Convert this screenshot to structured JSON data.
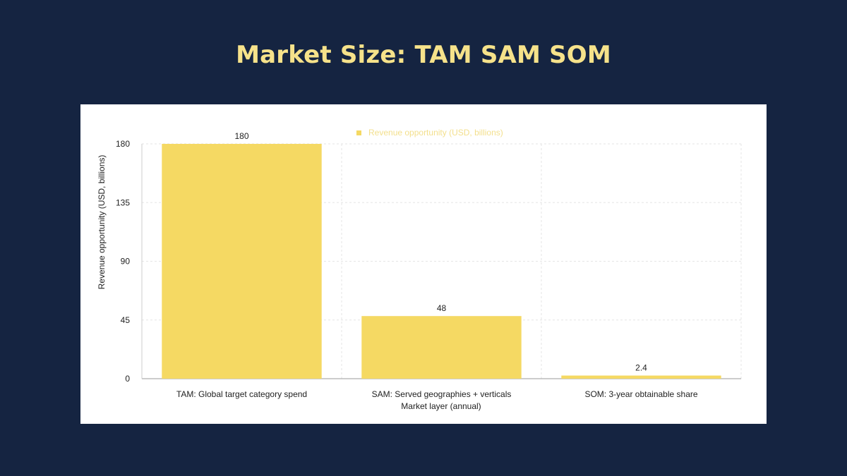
{
  "title": "Market Size: TAM SAM SOM",
  "colors": {
    "background": "#152441",
    "title": "#f6e28a",
    "bar": "#f5d963",
    "grid": "#e6e6e6"
  },
  "chart_data": {
    "type": "bar",
    "title": "",
    "categories": [
      "TAM: Global target category spend",
      "SAM: Served geographies + verticals",
      "SOM: 3-year obtainable share"
    ],
    "series": [
      {
        "name": "Revenue opportunity (USD, billions)",
        "values": [
          180,
          48,
          2.4
        ],
        "labels": [
          "180",
          "48",
          "2.4"
        ]
      }
    ],
    "xlabel": "Market layer (annual)",
    "ylabel": "Revenue opportunity (USD, billions)",
    "ylim": [
      0,
      180
    ],
    "yticks": [
      0,
      45,
      90,
      135,
      180
    ],
    "ytick_labels": [
      "0",
      "45",
      "90",
      "135",
      "180"
    ],
    "grid": true,
    "legend": "top-center"
  }
}
